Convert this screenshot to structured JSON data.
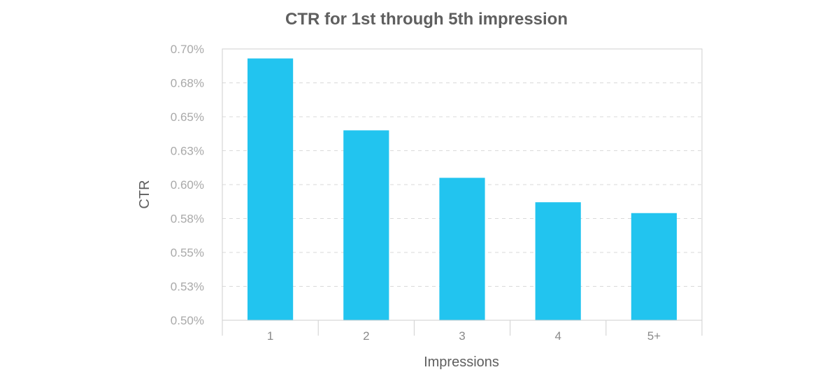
{
  "chart_data": {
    "type": "bar",
    "title": "CTR for 1st through 5th impression",
    "xlabel": "Impressions",
    "ylabel": "CTR",
    "categories": [
      "1",
      "2",
      "3",
      "4",
      "5+"
    ],
    "values": [
      0.00693,
      0.0064,
      0.00605,
      0.00587,
      0.00579
    ],
    "ylim": [
      0.005,
      0.007
    ],
    "yticks": [
      0.005,
      0.00525,
      0.0055,
      0.00575,
      0.006,
      0.00625,
      0.0065,
      0.00675,
      0.007
    ],
    "ytick_labels": [
      "0.50%",
      "0.53%",
      "0.55%",
      "0.58%",
      "0.60%",
      "0.63%",
      "0.65%",
      "0.68%",
      "0.70%"
    ],
    "grid": true,
    "bar_color": "#22c4ef",
    "grid_color": "#d9d9d9",
    "axis_color": "#cfcfcf"
  }
}
